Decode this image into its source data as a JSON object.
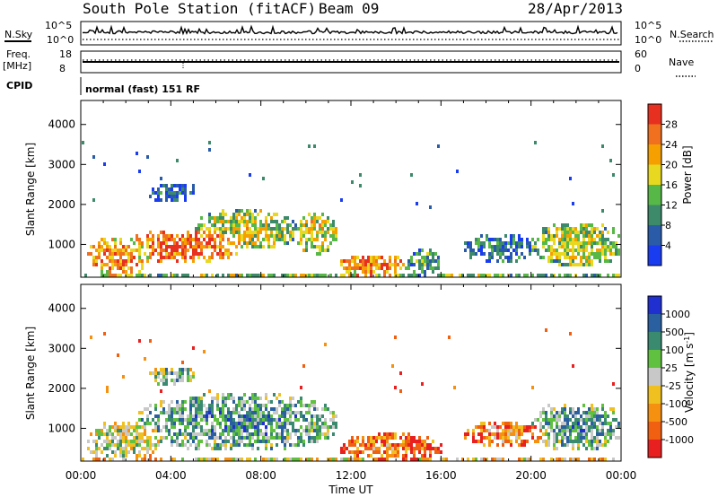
{
  "header": {
    "station": "South Pole Station (fitACF)",
    "beam": "Beam 09",
    "date": "28/Apr/2013"
  },
  "status_panels": {
    "nsky_label": "N.Sky",
    "nsearch_label": "N.Search",
    "nsky_ticks": [
      "10^5",
      "10^0"
    ],
    "nsearch_ticks": [
      "10^5",
      "10^0"
    ],
    "freq_label": "Freq.",
    "freq_unit": "[MHz]",
    "freq_ticks": [
      "18",
      "8"
    ],
    "nave_label": "Nave",
    "nave_ticks": [
      "60",
      "0"
    ],
    "cpid_label": "CPID",
    "cpid_text": "normal (fast) 151 RF"
  },
  "chart_data": [
    {
      "type": "heatmap",
      "name": "power",
      "ylabel": "Slant Range [km]",
      "ylim": [
        180,
        4600
      ],
      "yticks": [
        1000,
        2000,
        3000,
        4000
      ],
      "xlim": [
        0,
        24
      ],
      "xlabel": "Time UT",
      "colorbar": {
        "label": "Power [dB]",
        "levels": [
          4,
          8,
          12,
          16,
          20,
          24,
          28
        ],
        "colors": [
          "#1a3cf0",
          "#2a5ba8",
          "#3d8a6a",
          "#57b848",
          "#e8d820",
          "#f5a000",
          "#f07020",
          "#e83020"
        ]
      },
      "regions": [
        {
          "t0": 0.2,
          "t1": 3.0,
          "r0": 250,
          "r1": 1200,
          "level": 0.75
        },
        {
          "t0": 2.0,
          "t1": 7.0,
          "r0": 600,
          "r1": 1400,
          "level": 0.85
        },
        {
          "t0": 5.0,
          "t1": 9.5,
          "r0": 900,
          "r1": 1900,
          "level": 0.55
        },
        {
          "t0": 9.5,
          "t1": 11.3,
          "r0": 800,
          "r1": 1800,
          "level": 0.6
        },
        {
          "t0": 11.5,
          "t1": 14.5,
          "r0": 250,
          "r1": 800,
          "level": 0.8
        },
        {
          "t0": 14.5,
          "t1": 16.0,
          "r0": 250,
          "r1": 900,
          "level": 0.4
        },
        {
          "t0": 17.0,
          "t1": 20.0,
          "r0": 600,
          "r1": 1300,
          "level": 0.3
        },
        {
          "t0": 20.0,
          "t1": 24.0,
          "r0": 500,
          "r1": 1600,
          "level": 0.55
        },
        {
          "t0": 3.0,
          "t1": 5.0,
          "r0": 2100,
          "r1": 2600,
          "level": 0.2
        },
        {
          "t0": 0.0,
          "t1": 24.0,
          "r0": 180,
          "r1": 320,
          "level": 0.5
        }
      ]
    },
    {
      "type": "heatmap",
      "name": "velocity",
      "ylabel": "Slant Range [km]",
      "ylim": [
        180,
        4600
      ],
      "yticks": [
        1000,
        2000,
        3000,
        4000
      ],
      "xlim": [
        0,
        24
      ],
      "xlabel": "Time UT",
      "xticklabels": [
        "00:00",
        "04:00",
        "08:00",
        "12:00",
        "16:00",
        "20:00",
        "00:00"
      ],
      "colorbar": {
        "label": "Velocity [m s^-1]",
        "levels": [
          1000,
          500,
          100,
          25,
          -25,
          -100,
          -500,
          -1000
        ],
        "colors": [
          "#2030d0",
          "#2a60a0",
          "#3a8a70",
          "#60c040",
          "#c8c8c8",
          "#f0c020",
          "#f59010",
          "#f06010",
          "#e82020"
        ]
      },
      "regions": [
        {
          "t0": 0.2,
          "t1": 3.5,
          "r0": 250,
          "r1": 1200,
          "level": 0.55
        },
        {
          "t0": 2.5,
          "t1": 11.3,
          "r0": 500,
          "r1": 1900,
          "level": 0.72
        },
        {
          "t0": 11.5,
          "t1": 16.0,
          "r0": 250,
          "r1": 900,
          "level": 0.25
        },
        {
          "t0": 17.0,
          "t1": 20.5,
          "r0": 600,
          "r1": 1200,
          "level": 0.3
        },
        {
          "t0": 20.0,
          "t1": 24.0,
          "r0": 500,
          "r1": 1700,
          "level": 0.7
        },
        {
          "t0": 3.0,
          "t1": 5.0,
          "r0": 2100,
          "r1": 2600,
          "level": 0.65
        },
        {
          "t0": 0.0,
          "t1": 24.0,
          "r0": 180,
          "r1": 320,
          "level": 0.45
        }
      ]
    }
  ]
}
